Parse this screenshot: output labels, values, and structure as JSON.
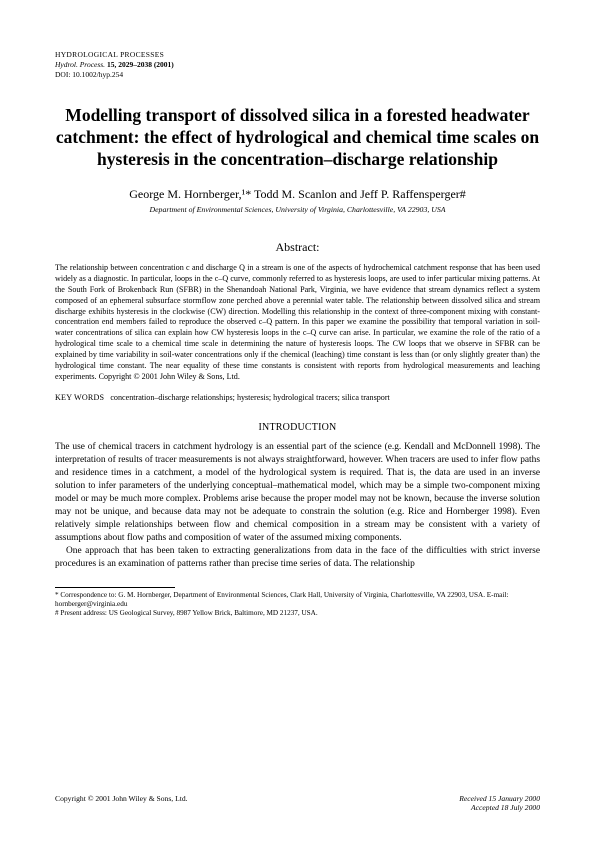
{
  "journal": {
    "name": "HYDROLOGICAL PROCESSES",
    "reference": "Hydrol. Process.",
    "volume_pages": "15, 2029–2038 (2001)",
    "doi": "DOI: 10.1002/hyp.254"
  },
  "title": "Modelling transport of dissolved silica in a forested headwater catchment: the effect of hydrological and chemical time scales on hysteresis in the concentration–discharge relationship",
  "authors": "George M. Hornberger,¹* Todd M. Scanlon and Jeff P. Raffensperger#",
  "affiliation": "Department of Environmental Sciences, University of Virginia, Charlottesville, VA 22903, USA",
  "abstract": {
    "heading": "Abstract:",
    "text": "The relationship between concentration c and discharge Q in a stream is one of the aspects of hydrochemical catchment response that has been used widely as a diagnostic. In particular, loops in the c–Q curve, commonly referred to as hysteresis loops, are used to infer particular mixing patterns. At the South Fork of Brokenback Run (SFBR) in the Shenandoah National Park, Virginia, we have evidence that stream dynamics reflect a system composed of an ephemeral subsurface stormflow zone perched above a perennial water table. The relationship between dissolved silica and stream discharge exhibits hysteresis in the clockwise (CW) direction. Modelling this relationship in the context of three-component mixing with constant-concentration end members failed to reproduce the observed c–Q pattern. In this paper we examine the possibility that temporal variation in soil-water concentrations of silica can explain how CW hysteresis loops in the c–Q curve can arise. In particular, we examine the role of the ratio of a hydrological time scale to a chemical time scale in determining the nature of hysteresis loops. The CW loops that we observe in SFBR can be explained by time variability in soil-water concentrations only if the chemical (leaching) time constant is less than (or only slightly greater than) the hydrological time constant. The near equality of these time constants is consistent with reports from hydrological measurements and leaching experiments. Copyright © 2001 John Wiley & Sons, Ltd."
  },
  "keywords": {
    "label": "KEY WORDS",
    "text": "concentration–discharge relationships; hysteresis; hydrological tracers; silica transport"
  },
  "introduction": {
    "heading": "INTRODUCTION",
    "para1": "The use of chemical tracers in catchment hydrology is an essential part of the science (e.g. Kendall and McDonnell 1998). The interpretation of results of tracer measurements is not always straightforward, however. When tracers are used to infer flow paths and residence times in a catchment, a model of the hydrological system is required. That is, the data are used in an inverse solution to infer parameters of the underlying conceptual–mathematical model, which may be a simple two-component mixing model or may be much more complex. Problems arise because the proper model may not be known, because the inverse solution may not be unique, and because data may not be adequate to constrain the solution (e.g. Rice and Hornberger 1998). Even relatively simple relationships between flow and chemical composition in a stream may be consistent with a variety of assumptions about flow paths and composition of water of the assumed mixing components.",
    "para2": "One approach that has been taken to extracting generalizations from data in the face of the difficulties with strict inverse procedures is an examination of patterns rather than precise time series of data. The relationship"
  },
  "footnotes": {
    "correspondence": "* Correspondence to: G. M. Hornberger, Department of Environmental Sciences, Clark Hall, University of Virginia, Charlottesville, VA 22903, USA. E-mail: hornberger@virginia.edu",
    "present": "# Present address: US Geological Survey, 8987 Yellow Brick, Baltimore, MD 21237, USA."
  },
  "footer": {
    "copyright": "Copyright © 2001 John Wiley & Sons, Ltd.",
    "received": "Received 15 January 2000",
    "accepted": "Accepted 18 July 2000"
  }
}
